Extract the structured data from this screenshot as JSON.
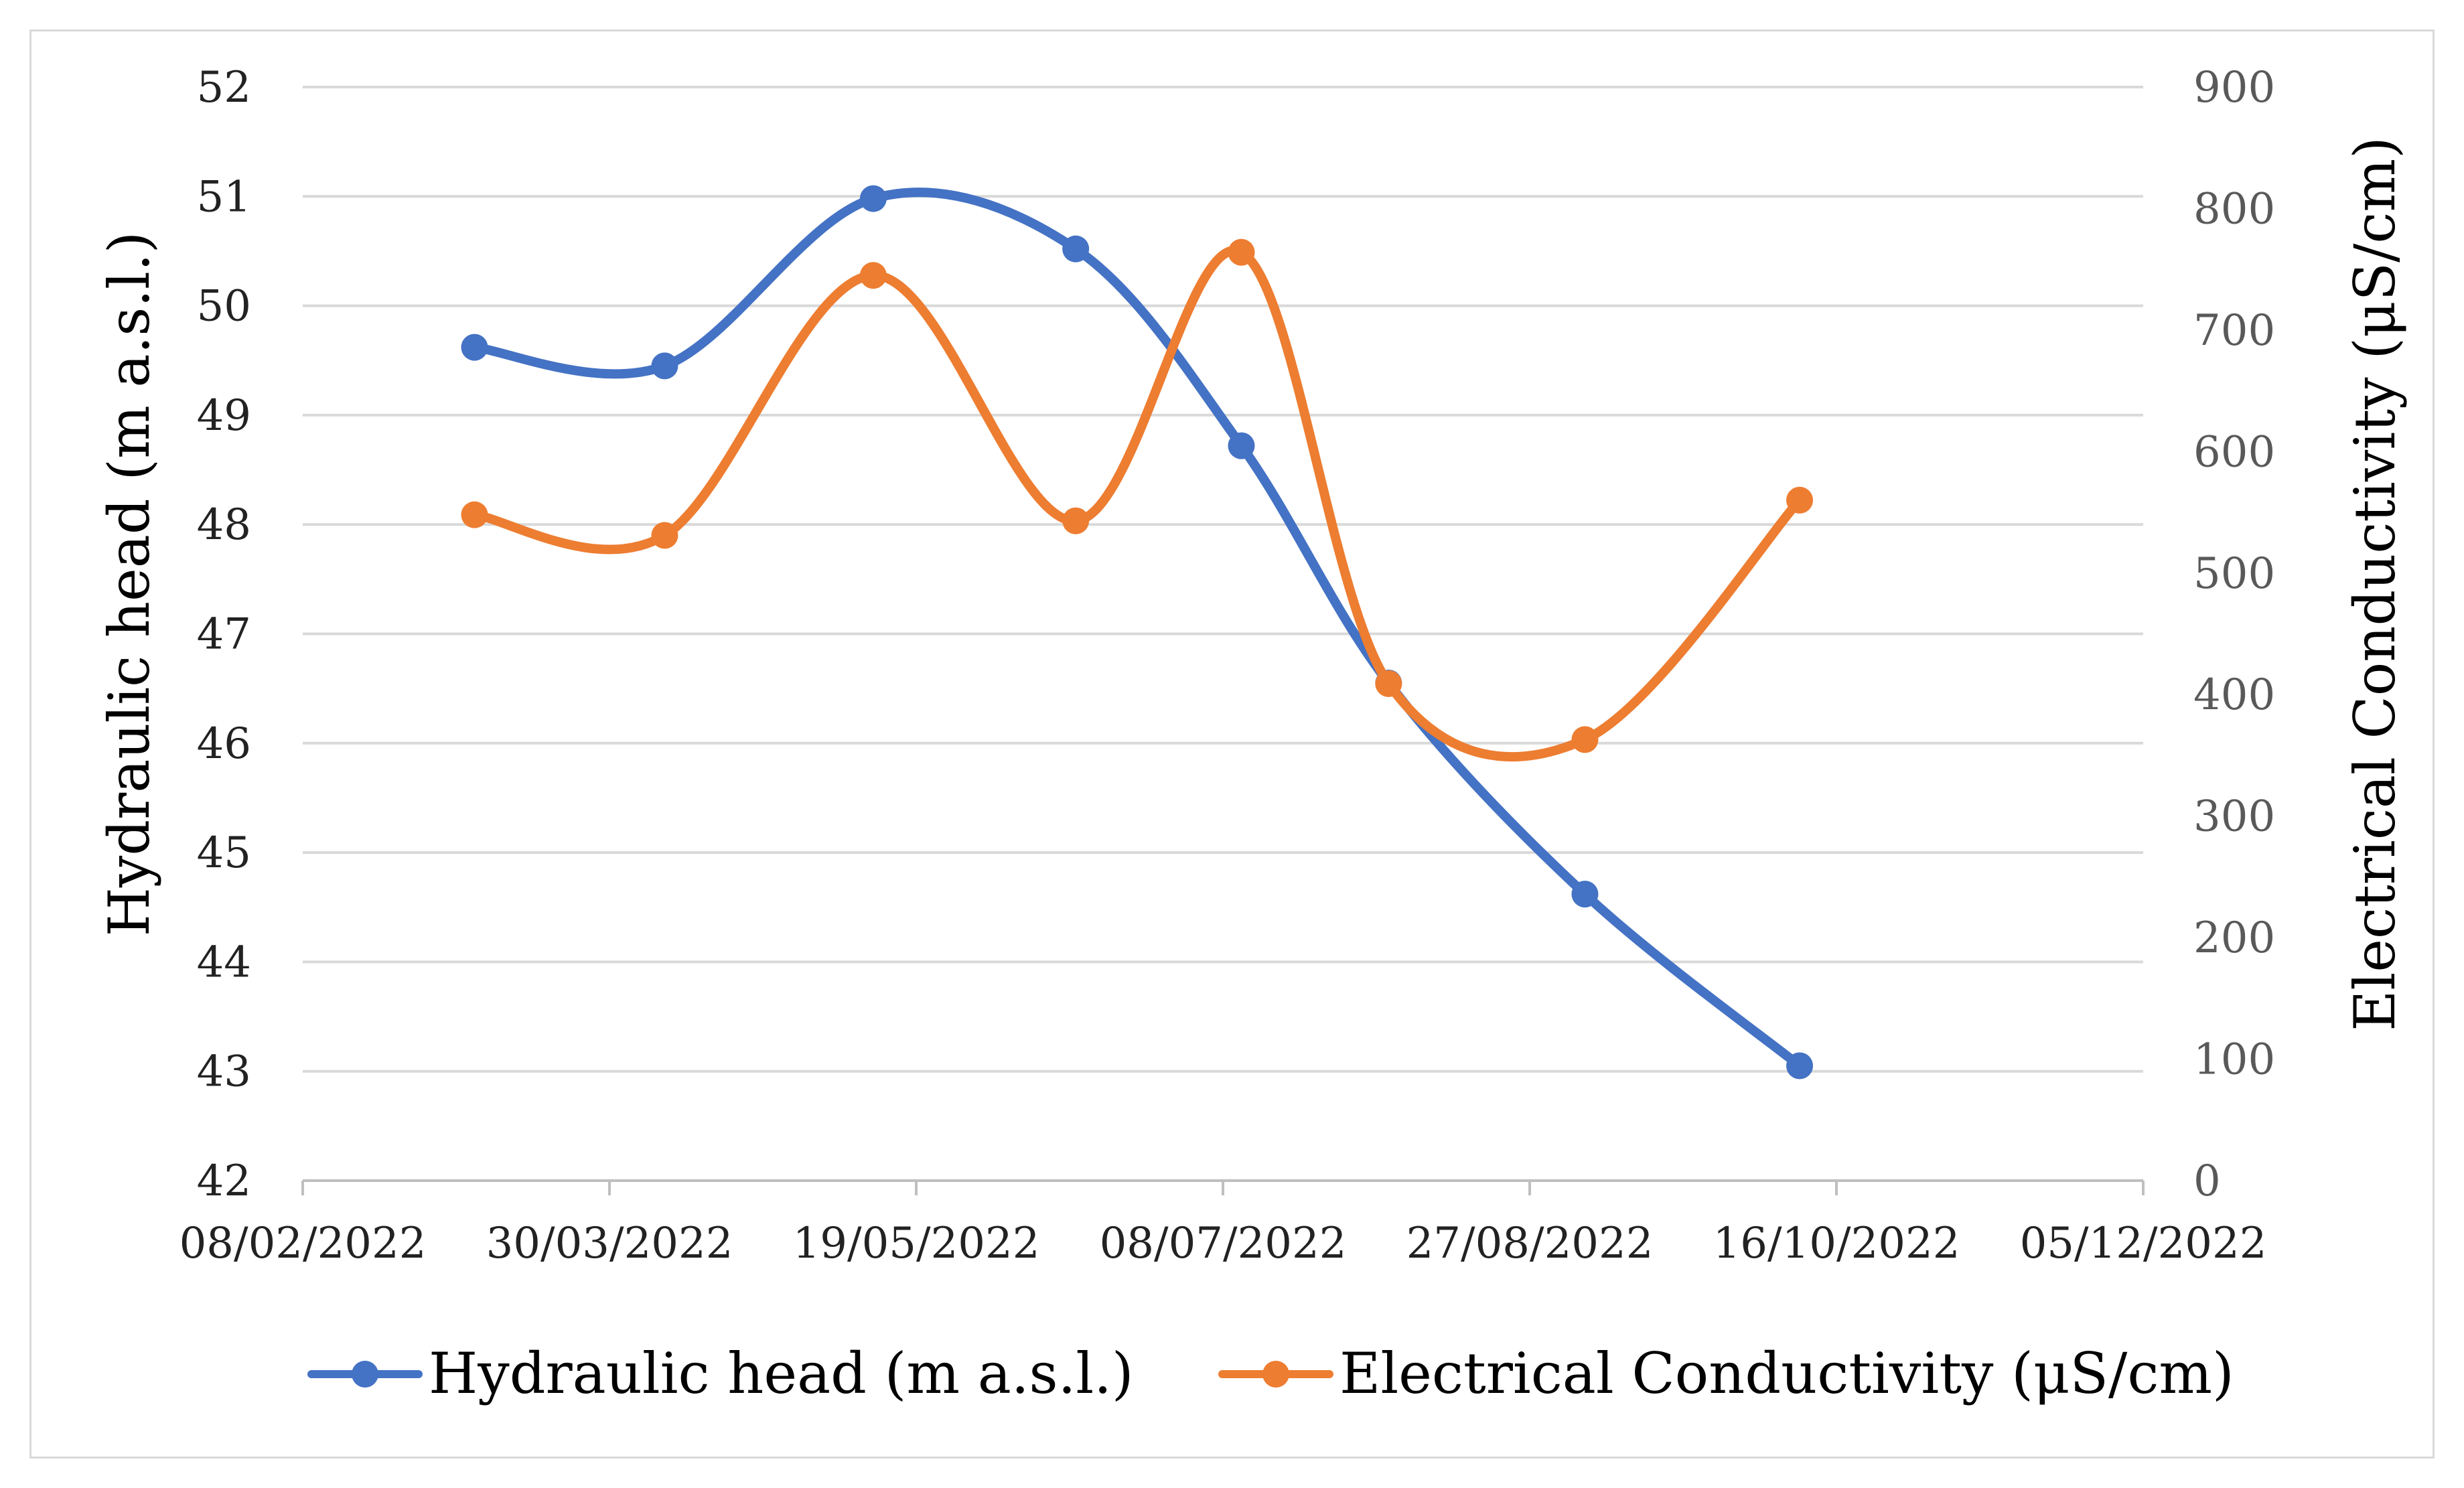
{
  "chart_data": {
    "type": "line",
    "title": "",
    "x_dates": [
      "08/02/2022",
      "30/03/2022",
      "19/05/2022",
      "08/07/2022",
      "27/08/2022",
      "16/10/2022",
      "05/12/2022"
    ],
    "xlim_days": [
      0,
      300
    ],
    "ylabel": "Hydraulic head (m a.s.l.)",
    "y2label": "Electrical Conductivity (μS/cm)",
    "ylim": [
      42,
      52
    ],
    "y2lim": [
      0,
      900
    ],
    "yticks": [
      "42",
      "43",
      "44",
      "45",
      "46",
      "47",
      "48",
      "49",
      "50",
      "51",
      "52"
    ],
    "y2ticks": [
      "0",
      "100",
      "200",
      "300",
      "400",
      "500",
      "600",
      "700",
      "800",
      "900"
    ],
    "gridlines": true,
    "legend_position": "bottom",
    "series": [
      {
        "name": "Hydraulic head (m a.s.l.)",
        "axis": "left",
        "color": "#4472C4",
        "x_days": [
          28,
          59,
          93,
          126,
          153,
          177,
          209,
          244
        ],
        "values": [
          49.62,
          49.45,
          50.98,
          50.52,
          48.72,
          46.55,
          44.62,
          43.05
        ]
      },
      {
        "name": "Electrical Conductivity (μS/cm)",
        "axis": "right",
        "color": "#ED7D31",
        "x_days": [
          28,
          59,
          93,
          126,
          153,
          177,
          209,
          244
        ],
        "values": [
          548,
          531,
          745,
          543,
          764,
          409,
          363,
          560
        ]
      }
    ]
  }
}
